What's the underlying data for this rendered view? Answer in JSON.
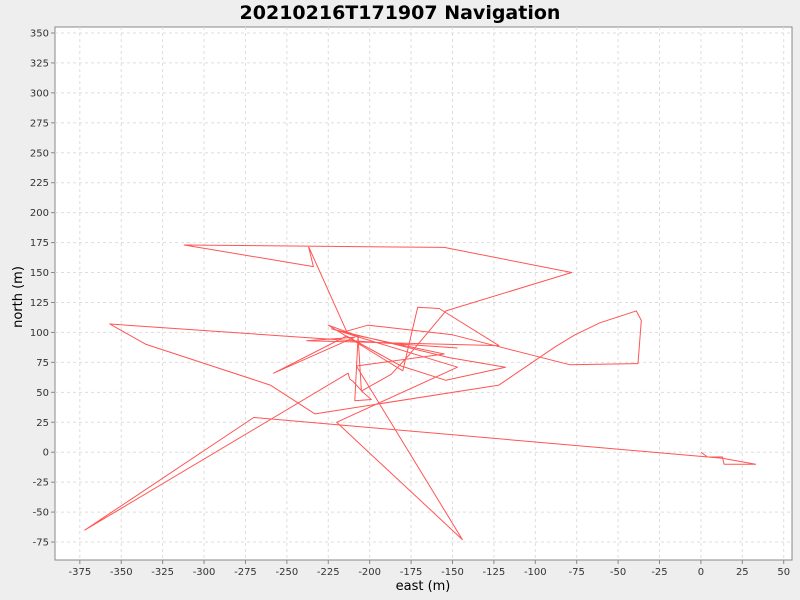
{
  "chart_data": {
    "type": "line",
    "title": "20210216T171907 Navigation",
    "xlabel": "east (m)",
    "ylabel": "north (m)",
    "xlim": [
      -390,
      55
    ],
    "ylim": [
      -90,
      355
    ],
    "xticks": [
      -375,
      -350,
      -325,
      -300,
      -275,
      -250,
      -225,
      -200,
      -175,
      -150,
      -125,
      -100,
      -75,
      -50,
      -25,
      0,
      25,
      50
    ],
    "yticks": [
      -75,
      -50,
      -25,
      0,
      25,
      50,
      75,
      100,
      125,
      150,
      175,
      200,
      225,
      250,
      275,
      300,
      325,
      350
    ],
    "grid": true,
    "line_color": "#ff5555",
    "series": [
      {
        "x": [
          0,
          4,
          13,
          14,
          33,
          13,
          -270,
          -372,
          -213,
          -212,
          -210,
          -204,
          -199,
          -209,
          -207,
          -225,
          -180,
          -171,
          -158,
          -122,
          -238,
          -209,
          -258,
          -214,
          -181,
          -154,
          -118,
          -152,
          -223,
          -147,
          -220,
          -144,
          -208,
          -155,
          -213,
          -207,
          -205,
          -187,
          -177,
          -154,
          -78,
          -155,
          -312,
          -234,
          -237,
          -214,
          -201,
          -150,
          -79,
          -38,
          -36,
          -39,
          -61,
          -76,
          -88,
          -122,
          -233,
          -260,
          -335,
          -357,
          -147
        ],
        "y": [
          0,
          -4,
          -4,
          -10,
          -10,
          -5,
          29,
          -65,
          66,
          61,
          59,
          50,
          44,
          43,
          97,
          106,
          68,
          121,
          120,
          89,
          93,
          96,
          66,
          97,
          72,
          60,
          71,
          79,
          103,
          71,
          25,
          -73,
          72,
          82,
          99,
          96,
          51,
          65,
          80,
          118,
          150,
          171,
          173,
          155,
          172,
          101,
          106,
          98,
          73,
          74,
          110,
          118,
          108,
          98,
          88,
          56,
          32,
          56,
          90,
          107,
          87
        ]
      }
    ]
  }
}
